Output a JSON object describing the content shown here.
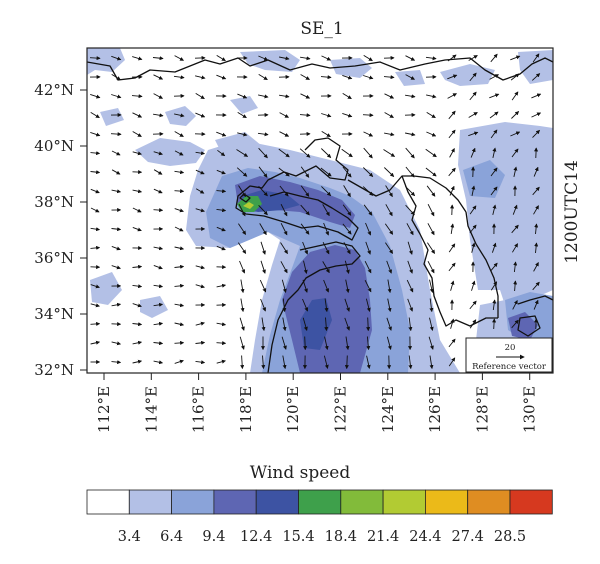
{
  "title": "SE_1",
  "time_label": "1200UTC14",
  "colorbar_title": "Wind speed",
  "reference_vector": {
    "value": "20",
    "label": "Reference vector"
  },
  "lat_ticks": [
    "32°N",
    "34°N",
    "36°N",
    "38°N",
    "40°N",
    "42°N"
  ],
  "lon_ticks": [
    "112°E",
    "114°E",
    "116°E",
    "118°E",
    "120°E",
    "122°E",
    "124°E",
    "126°E",
    "128°E",
    "130°E"
  ],
  "colorbar": {
    "colors": [
      "#ffffff",
      "#b3c0e6",
      "#8aa3d9",
      "#5e66b3",
      "#3d53a3",
      "#3ea04b",
      "#82bb3a",
      "#b2cb33",
      "#ebba19",
      "#df8d22",
      "#d6391f"
    ],
    "levels": [
      "3.4",
      "6.4",
      "9.4",
      "12.4",
      "15.4",
      "18.4",
      "21.4",
      "24.4",
      "27.4",
      "28.5"
    ]
  },
  "colors": {
    "coast": "#111111",
    "arrow": "#111111"
  }
}
